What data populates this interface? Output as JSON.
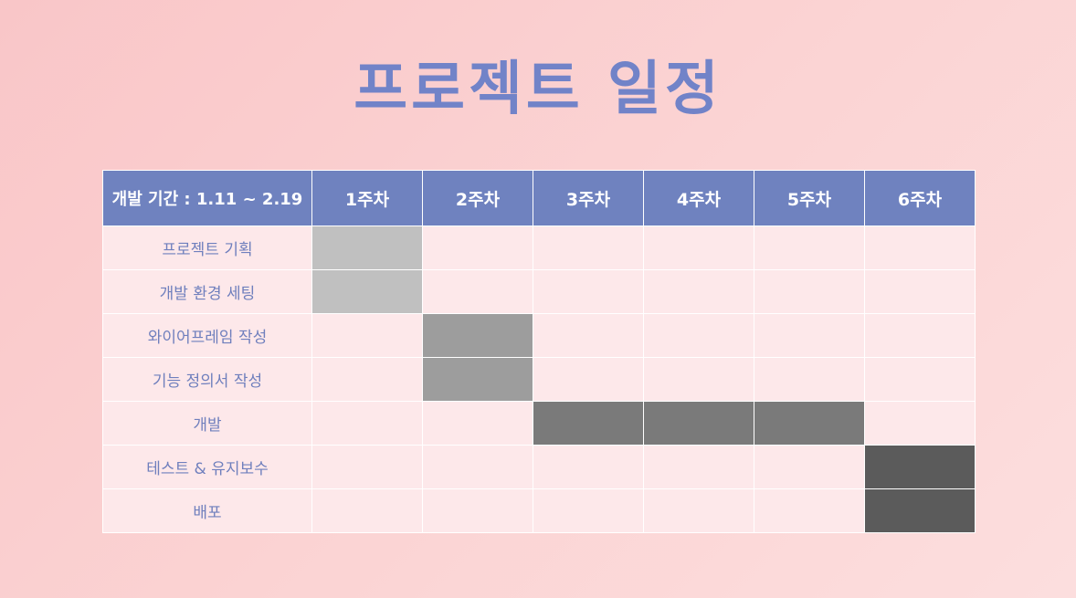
{
  "title": "프로젝트 일정",
  "table": {
    "period_header": "개발 기간 : 1.11 ~ 2.19",
    "weeks": [
      "1주차",
      "2주차",
      "3주차",
      "4주차",
      "5주차",
      "6주차"
    ],
    "tasks": [
      {
        "name": "프로젝트 기획",
        "active_weeks": [
          1
        ],
        "fill_level": 1
      },
      {
        "name": "개발 환경 세팅",
        "active_weeks": [
          1
        ],
        "fill_level": 1
      },
      {
        "name": "와이어프레임 작성",
        "active_weeks": [
          2
        ],
        "fill_level": 2
      },
      {
        "name": "기능 정의서 작성",
        "active_weeks": [
          2
        ],
        "fill_level": 2
      },
      {
        "name": "개발",
        "active_weeks": [
          3,
          4,
          5
        ],
        "fill_level": 3
      },
      {
        "name": "테스트 & 유지보수",
        "active_weeks": [
          6
        ],
        "fill_level": 4
      },
      {
        "name": "배포",
        "active_weeks": [
          6
        ],
        "fill_level": 4
      }
    ]
  },
  "colors": {
    "header_bg": "#6f82bf",
    "cell_bg": "#fde8ea",
    "title": "#7183c8",
    "fill_level_1": "#c0c0c0",
    "fill_level_2": "#9d9d9d",
    "fill_level_3": "#7a7a7a",
    "fill_level_4": "#5b5b5b"
  }
}
